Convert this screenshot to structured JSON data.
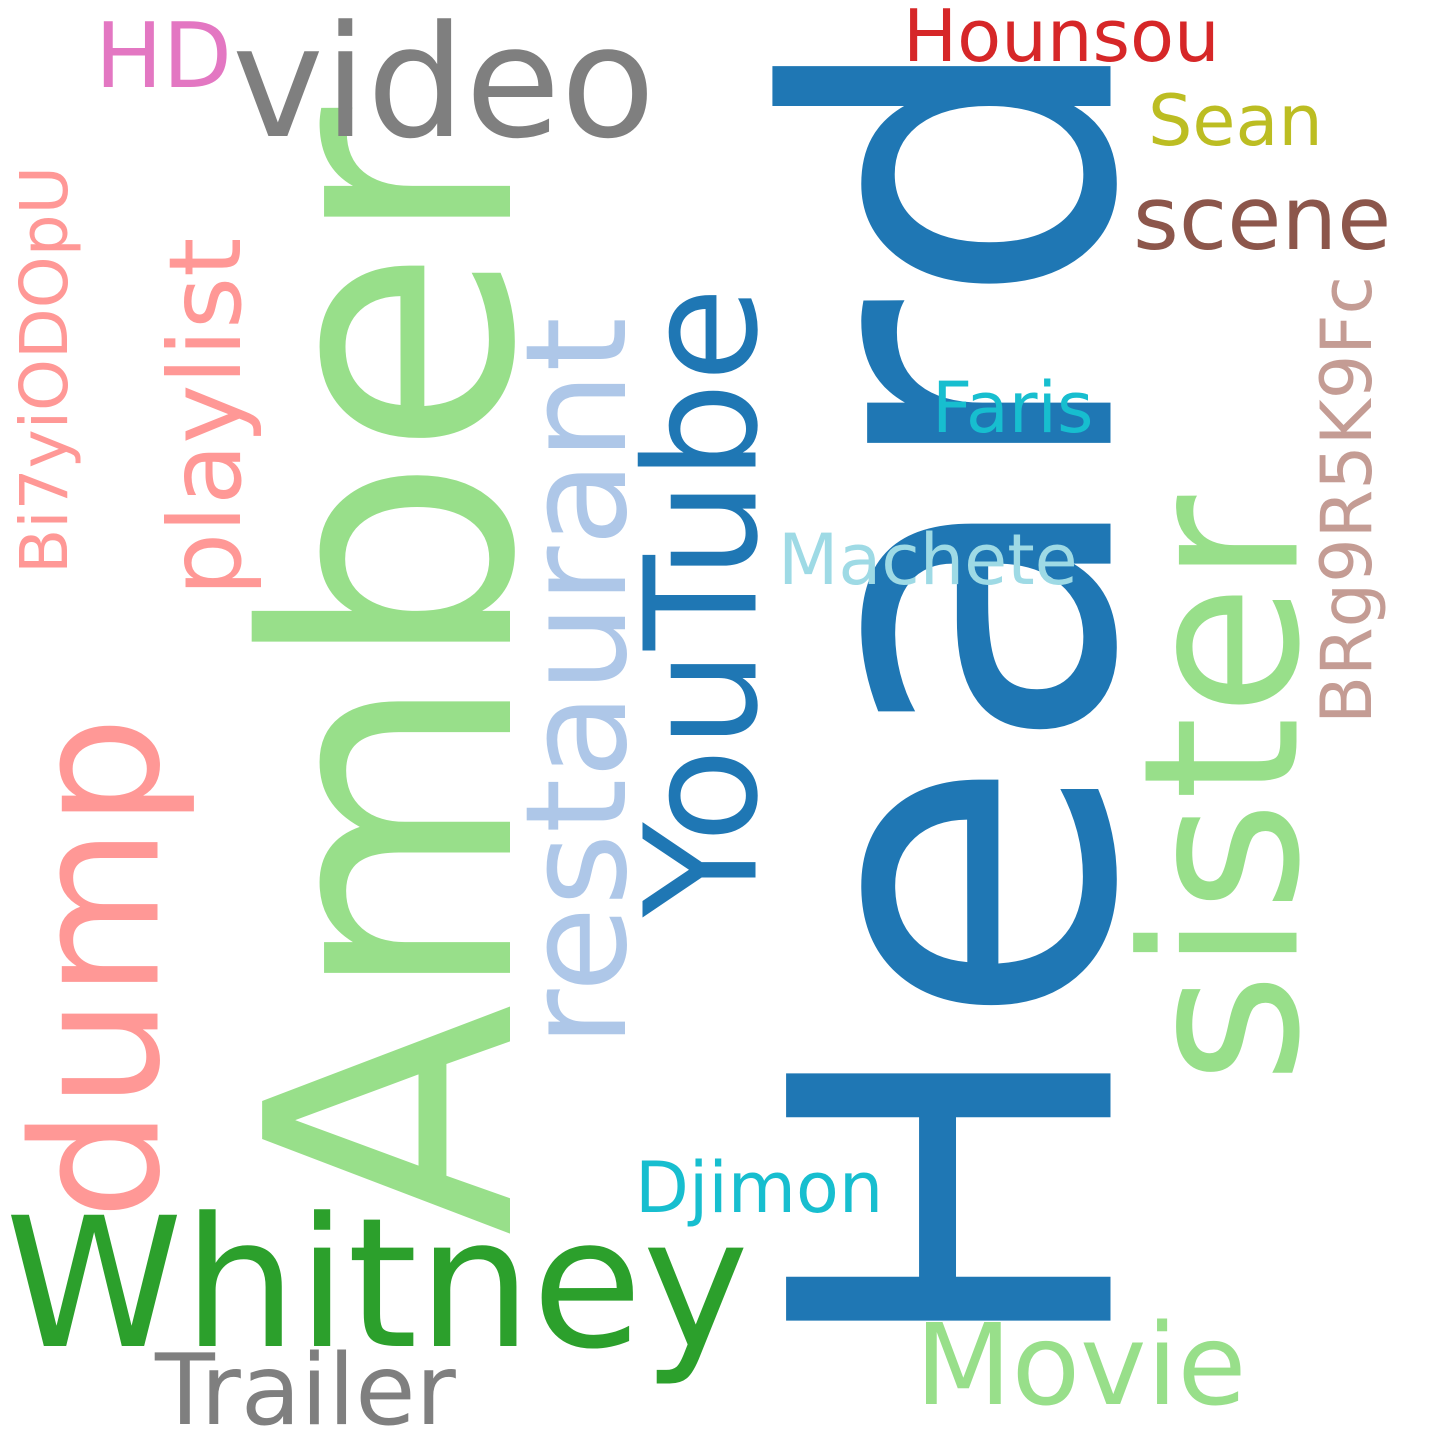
{
  "words": {
    "heard": {
      "text": "Heard",
      "color": "#1f77b4"
    },
    "amber": {
      "text": "Amber",
      "color": "#98df8a"
    },
    "sister": {
      "text": "sister",
      "color": "#98df8a"
    },
    "restaurant": {
      "text": "restaurant",
      "color": "#aec7e8"
    },
    "youtube": {
      "text": "YouTube",
      "color": "#1f77b4"
    },
    "whitney": {
      "text": "Whitney",
      "color": "#2ca02c"
    },
    "video": {
      "text": "video",
      "color": "#7f7f7f"
    },
    "dump": {
      "text": "dump",
      "color": "#ff9896"
    },
    "playlist": {
      "text": "playlist",
      "color": "#ff9896"
    },
    "movie": {
      "text": "Movie",
      "color": "#98df8a"
    },
    "trailer": {
      "text": "Trailer",
      "color": "#7f7f7f"
    },
    "scene": {
      "text": "scene",
      "color": "#8c564b"
    },
    "brg": {
      "text": "BRg9R5K9Fc",
      "color": "#c49c94"
    },
    "bi7": {
      "text": "Bi7yiODOpU",
      "color": "#ff9896"
    },
    "machete": {
      "text": "Machete",
      "color": "#9edae5"
    },
    "djimon": {
      "text": "Djimon",
      "color": "#17becf"
    },
    "faris": {
      "text": "Faris",
      "color": "#17becf"
    },
    "hounsou": {
      "text": "Hounsou",
      "color": "#d62728"
    },
    "sean": {
      "text": "Sean",
      "color": "#bcbd22"
    },
    "hd": {
      "text": "HD",
      "color": "#e377c2"
    }
  }
}
